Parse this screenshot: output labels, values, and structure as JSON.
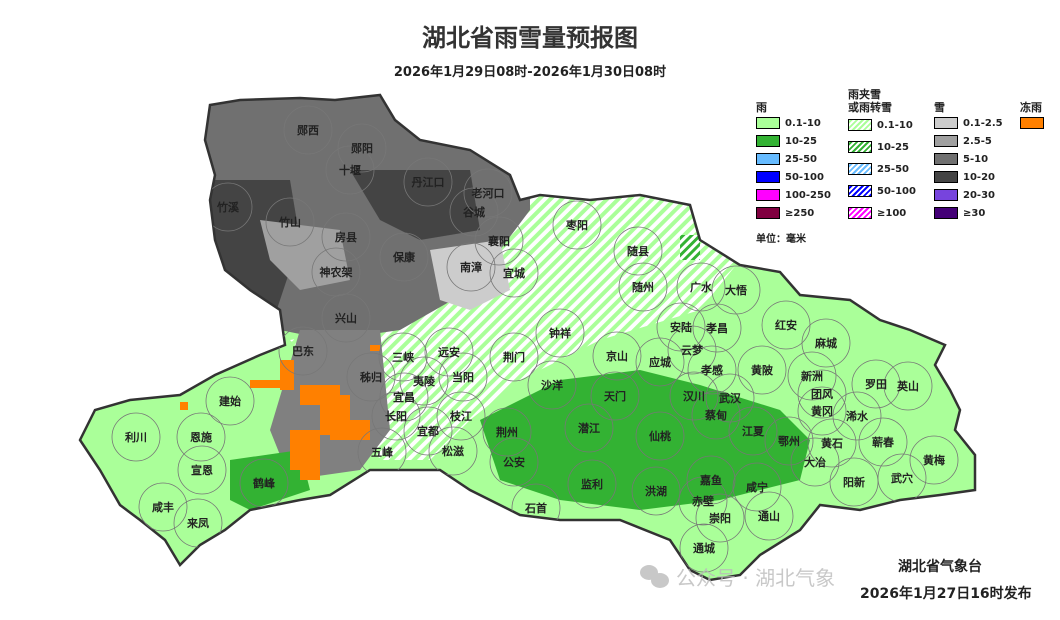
{
  "title": "湖北省雨雪量预报图",
  "subtitle": "2026年1月29日08时-2026年1月30日08时",
  "legend": {
    "rain": {
      "title": "雨",
      "items": [
        {
          "label": "0.1-10",
          "color": "#aaff99"
        },
        {
          "label": "10-25",
          "color": "#33b233"
        },
        {
          "label": "25-50",
          "color": "#66bbff"
        },
        {
          "label": "50-100",
          "color": "#0000ff"
        },
        {
          "label": "100-250",
          "color": "#ff00ff"
        },
        {
          "label": "≥250",
          "color": "#800040"
        }
      ]
    },
    "mixed": {
      "title": "雨夹雪或雨转雪",
      "title_line1": "雨夹雪",
      "title_line2": "或雨转雪",
      "items": [
        {
          "label": "0.1-10",
          "color": "#aaff99"
        },
        {
          "label": "10-25",
          "color": "#33b233"
        },
        {
          "label": "25-50",
          "color": "#66bbff"
        },
        {
          "label": "50-100",
          "color": "#0000ff"
        },
        {
          "label": "≥100",
          "color": "#ff00ff"
        }
      ]
    },
    "snow": {
      "title": "雪",
      "items": [
        {
          "label": "0.1-2.5",
          "color": "#cccccc"
        },
        {
          "label": "2.5-5",
          "color": "#a0a0a0"
        },
        {
          "label": "5-10",
          "color": "#707070"
        },
        {
          "label": "10-20",
          "color": "#444444"
        },
        {
          "label": "20-30",
          "color": "#7744dd"
        },
        {
          "label": "≥30",
          "color": "#440077"
        }
      ]
    },
    "freezing": {
      "title": "冻雨",
      "items": [
        {
          "label": "",
          "color": "#ff8000"
        }
      ]
    },
    "unit": "单位：毫米"
  },
  "cities": [
    "郧西",
    "郧阳",
    "十堰",
    "丹江口",
    "老河口",
    "谷城",
    "竹溪",
    "竹山",
    "房县",
    "保康",
    "南漳",
    "襄阳",
    "宜城",
    "枣阳",
    "随县",
    "随州",
    "广水",
    "大悟",
    "神农架",
    "兴山",
    "巴东",
    "秭归",
    "三峡",
    "远安",
    "当阳",
    "荆门",
    "钟祥",
    "京山",
    "安陆",
    "孝昌",
    "红安",
    "麻城",
    "应城",
    "云梦",
    "孝感",
    "黄陂",
    "新洲",
    "罗田",
    "英山",
    "团风",
    "黄冈",
    "浠水",
    "沙洋",
    "天门",
    "汉川",
    "武汉",
    "蔡甸",
    "夷陵",
    "宜昌",
    "长阳",
    "宜都",
    "枝江",
    "松滋",
    "五峰",
    "荆州",
    "潜江",
    "仙桃",
    "江夏",
    "鄂州",
    "黄石",
    "蕲春",
    "大冶",
    "黄梅",
    "阳新",
    "武穴",
    "公安",
    "石首",
    "监利",
    "洪湖",
    "嘉鱼",
    "咸宁",
    "赤壁",
    "崇阳",
    "通山",
    "通城",
    "建始",
    "恩施",
    "利川",
    "宣恩",
    "鹤峰",
    "咸丰",
    "来凤"
  ],
  "footer": {
    "issuer": "湖北省气象台",
    "issued": "2026年1月27日16时发布",
    "watermark": "公众号 · 湖北气象"
  }
}
